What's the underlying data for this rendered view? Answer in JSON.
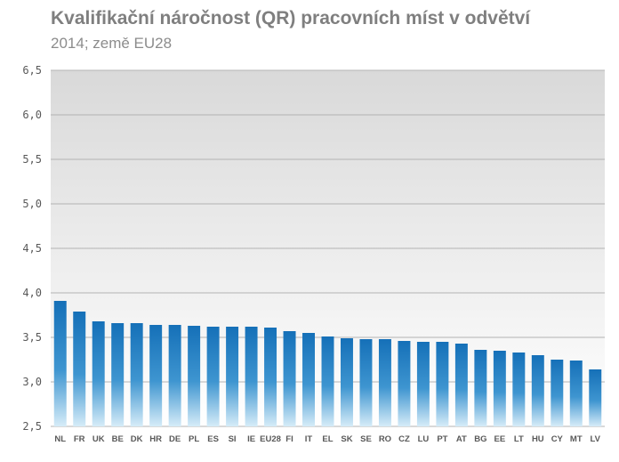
{
  "chart_data": {
    "type": "bar",
    "title": "Kvalifikační náročnost (QR)  pracovních míst v odvětví",
    "subtitle": "2014; země EU28",
    "categories": [
      "NL",
      "FR",
      "UK",
      "BE",
      "DK",
      "HR",
      "DE",
      "PL",
      "ES",
      "SI",
      "IE",
      "EU28",
      "FI",
      "IT",
      "EL",
      "SK",
      "SE",
      "RO",
      "CZ",
      "LU",
      "PT",
      "AT",
      "BG",
      "EE",
      "LT",
      "HU",
      "CY",
      "MT",
      "LV"
    ],
    "values": [
      3.91,
      3.79,
      3.68,
      3.66,
      3.66,
      3.64,
      3.64,
      3.63,
      3.62,
      3.62,
      3.62,
      3.61,
      3.57,
      3.55,
      3.51,
      3.49,
      3.48,
      3.48,
      3.46,
      3.45,
      3.45,
      3.43,
      3.36,
      3.35,
      3.33,
      3.3,
      3.25,
      3.24,
      3.14
    ],
    "ylim": [
      2.5,
      6.5
    ],
    "yticks": [
      "2,5",
      "3,0",
      "3,5",
      "4,0",
      "4,5",
      "5,0",
      "5,5",
      "6,0",
      "6,5"
    ],
    "ytick_values": [
      2.5,
      3.0,
      3.5,
      4.0,
      4.5,
      5.0,
      5.5,
      6.0,
      6.5
    ],
    "grid": true,
    "colors": {
      "bar_top": "#1570b8",
      "bar_bottom": "#d6ecf8",
      "plot_top": "#d9d9d9",
      "plot_bottom": "#ffffff",
      "grid": "#b3b3b3"
    }
  }
}
